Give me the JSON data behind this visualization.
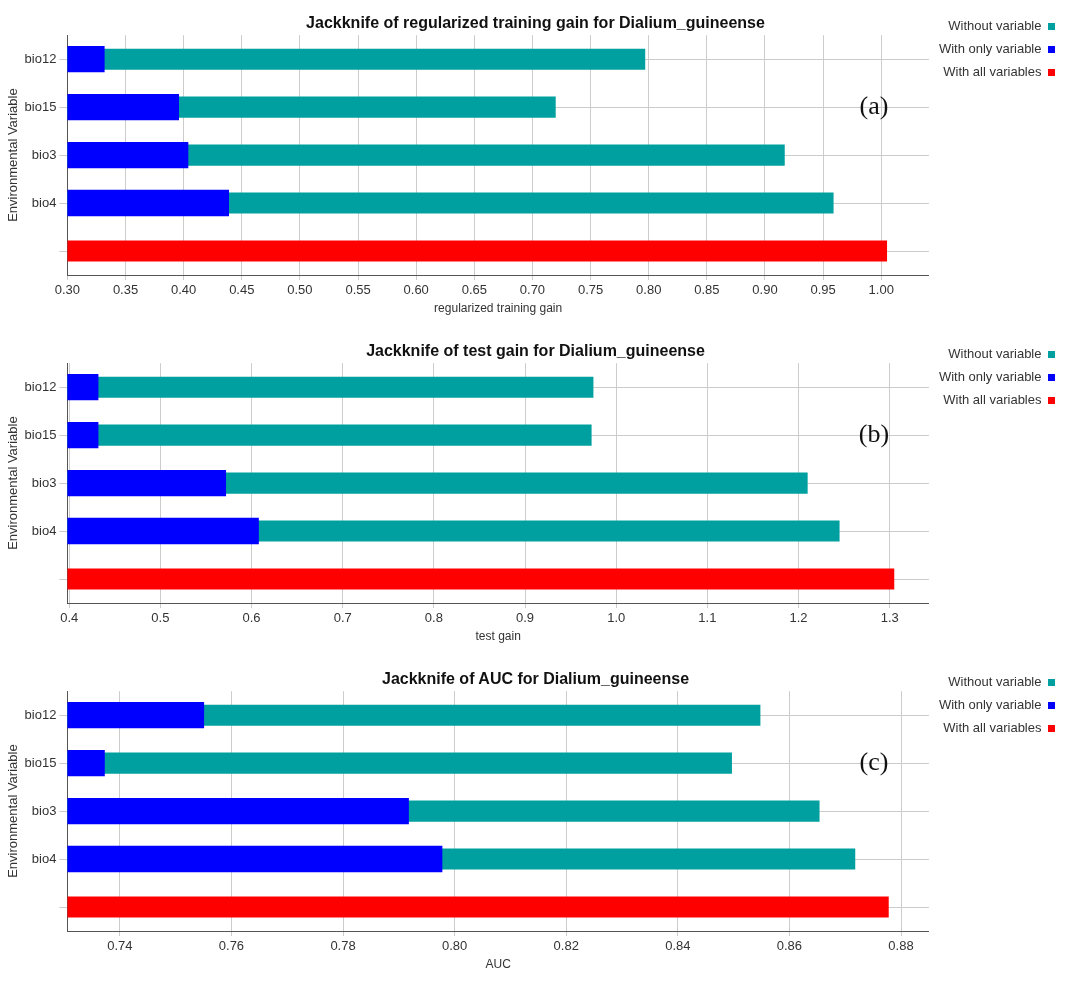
{
  "chart_data": [
    {
      "type": "bar",
      "orientation": "horizontal",
      "title": "Jackknife of regularized training gain for Dialium_guineense",
      "xlabel": "regularized training gain",
      "ylabel": "Environmental Variable",
      "annotations": [
        "(a)"
      ],
      "categories": [
        "bio12",
        "bio15",
        "bio3",
        "bio4",
        null
      ],
      "series": [
        {
          "name": "Without variable",
          "color": "#00a0a0",
          "values": [
            0.797,
            0.72,
            0.917,
            0.959,
            null
          ]
        },
        {
          "name": "With only variable",
          "color": "#0000ff",
          "values": [
            0.332,
            0.396,
            0.404,
            0.439,
            null
          ]
        },
        {
          "name": "With all variables",
          "color": "#ff0000",
          "values": [
            null,
            null,
            null,
            null,
            1.005
          ]
        }
      ],
      "xlim": [
        0.3,
        1.041
      ],
      "xticks": [
        {
          "value": 0.3,
          "label": "0.30"
        },
        {
          "value": 0.35,
          "label": "0.35"
        },
        {
          "value": 0.4,
          "label": "0.40"
        },
        {
          "value": 0.45,
          "label": "0.45"
        },
        {
          "value": 0.5,
          "label": "0.50"
        },
        {
          "value": 0.55,
          "label": "0.55"
        },
        {
          "value": 0.6,
          "label": "0.60"
        },
        {
          "value": 0.65,
          "label": "0.65"
        },
        {
          "value": 0.7,
          "label": "0.70"
        },
        {
          "value": 0.75,
          "label": "0.75"
        },
        {
          "value": 0.8,
          "label": "0.80"
        },
        {
          "value": 0.85,
          "label": "0.85"
        },
        {
          "value": 0.9,
          "label": "0.90"
        },
        {
          "value": 0.95,
          "label": "0.95"
        },
        {
          "value": 1,
          "label": "1.00"
        }
      ],
      "grid": true,
      "legend": "top right"
    },
    {
      "type": "bar",
      "orientation": "horizontal",
      "title": "Jackknife of test gain for Dialium_guineense",
      "xlabel": "test gain",
      "ylabel": "Environmental Variable",
      "annotations": [
        "(b)"
      ],
      "categories": [
        "bio12",
        "bio15",
        "bio3",
        "bio4",
        null
      ],
      "series": [
        {
          "name": "Without variable",
          "color": "#00a0a0",
          "values": [
            0.975,
            0.973,
            1.21,
            1.245,
            null
          ]
        },
        {
          "name": "With only variable",
          "color": "#0000ff",
          "values": [
            0.432,
            0.432,
            0.572,
            0.608,
            null
          ]
        },
        {
          "name": "With all variables",
          "color": "#ff0000",
          "values": [
            null,
            null,
            null,
            null,
            1.305
          ]
        }
      ],
      "xlim": [
        0.398,
        1.343
      ],
      "xticks": [
        0.4,
        0.5,
        0.6,
        0.7,
        0.8,
        0.9,
        {
          "value": 1,
          "label": "1.0"
        },
        1.1,
        1.2,
        1.3
      ],
      "grid": true,
      "legend": "top right"
    },
    {
      "type": "bar",
      "orientation": "horizontal",
      "title": "Jackknife of AUC for Dialium_guineense",
      "xlabel": "AUC",
      "ylabel": "Environmental Variable",
      "annotations": [
        "(c)"
      ],
      "categories": [
        "bio12",
        "bio15",
        "bio3",
        "bio4",
        null
      ],
      "series": [
        {
          "name": "Without variable",
          "color": "#00a0a0",
          "values": [
            0.8548,
            0.8497,
            0.8654,
            0.8718,
            null
          ]
        },
        {
          "name": "With only variable",
          "color": "#0000ff",
          "values": [
            0.7551,
            0.7373,
            0.7918,
            0.7978,
            null
          ]
        },
        {
          "name": "With all variables",
          "color": "#ff0000",
          "values": [
            null,
            null,
            null,
            null,
            0.8778
          ]
        }
      ],
      "xlim": [
        0.7306,
        0.885
      ],
      "xticks": [
        0.74,
        0.76,
        0.78,
        {
          "value": 0.8,
          "label": "0.80"
        },
        0.82,
        0.84,
        0.86,
        0.88
      ],
      "grid": true,
      "legend": "top right"
    }
  ]
}
